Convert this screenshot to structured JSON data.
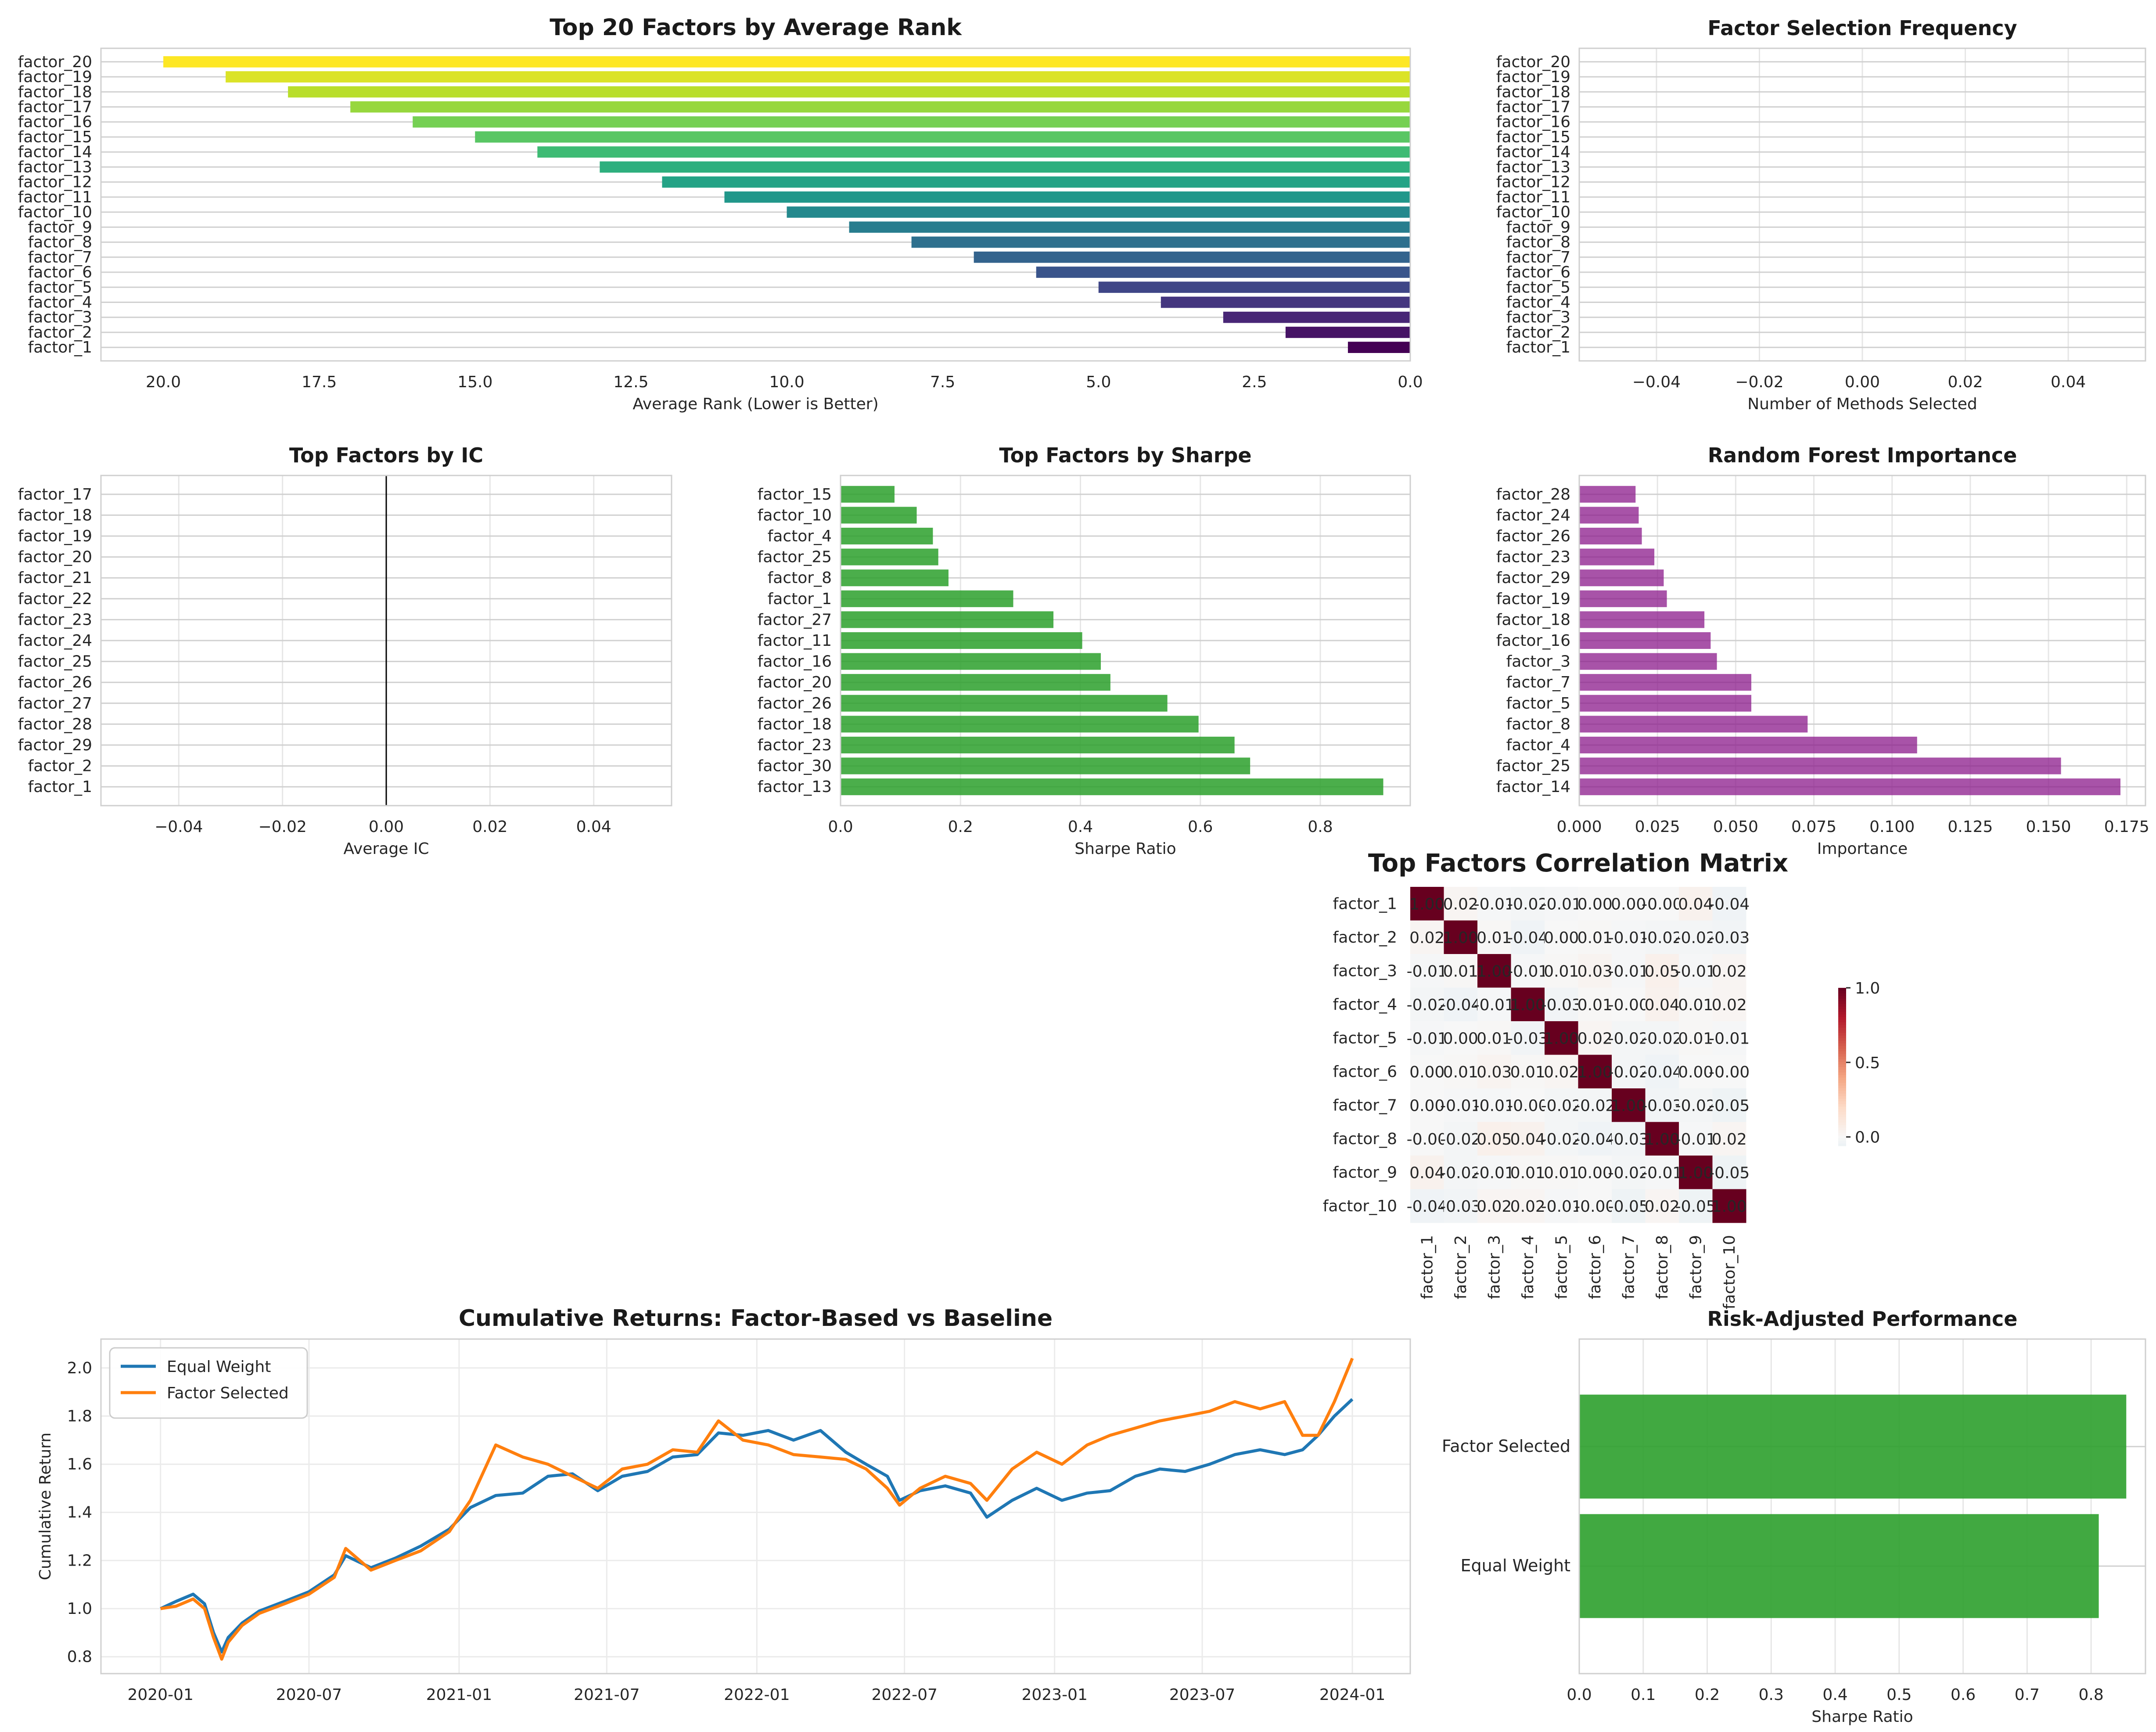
{
  "chart_data": [
    {
      "id": "avg_rank",
      "type": "bar",
      "orientation": "horizontal",
      "title": "Top 20 Factors by Average Rank",
      "xlabel": "Average Rank (Lower is Better)",
      "ylabel": "",
      "xlim": [
        21,
        0
      ],
      "xticks": [
        "20.0",
        "17.5",
        "15.0",
        "12.5",
        "10.0",
        "7.5",
        "5.0",
        "2.5",
        "0.0"
      ],
      "xtick_values": [
        20,
        17.5,
        15,
        12.5,
        10,
        7.5,
        5,
        2.5,
        0
      ],
      "colormap": "viridis",
      "grid": true,
      "categories": [
        "factor_1",
        "factor_2",
        "factor_3",
        "factor_4",
        "factor_5",
        "factor_6",
        "factor_7",
        "factor_8",
        "factor_9",
        "factor_10",
        "factor_11",
        "factor_12",
        "factor_13",
        "factor_14",
        "factor_15",
        "factor_16",
        "factor_17",
        "factor_18",
        "factor_19",
        "factor_20"
      ],
      "values": [
        1,
        2,
        3,
        4,
        5,
        6,
        7,
        8,
        9,
        10,
        11,
        12,
        13,
        14,
        15,
        16,
        17,
        18,
        19,
        20
      ]
    },
    {
      "id": "selection_freq",
      "type": "bar",
      "orientation": "horizontal",
      "title": "Factor Selection Frequency",
      "xlabel": "Number of Methods Selected",
      "ylabel": "",
      "xlim": [
        -0.055,
        0.055
      ],
      "xticks": [
        "−0.04",
        "−0.02",
        "0.00",
        "0.02",
        "0.04"
      ],
      "xtick_values": [
        -0.04,
        -0.02,
        0,
        0.02,
        0.04
      ],
      "grid": true,
      "categories": [
        "factor_1",
        "factor_2",
        "factor_3",
        "factor_4",
        "factor_5",
        "factor_6",
        "factor_7",
        "factor_8",
        "factor_9",
        "factor_10",
        "factor_11",
        "factor_12",
        "factor_13",
        "factor_14",
        "factor_15",
        "factor_16",
        "factor_17",
        "factor_18",
        "factor_19",
        "factor_20"
      ],
      "values": [
        0,
        0,
        0,
        0,
        0,
        0,
        0,
        0,
        0,
        0,
        0,
        0,
        0,
        0,
        0,
        0,
        0,
        0,
        0,
        0
      ]
    },
    {
      "id": "ic",
      "type": "bar",
      "orientation": "horizontal",
      "title": "Top Factors by IC",
      "xlabel": "Average IC",
      "ylabel": "",
      "xlim": [
        -0.055,
        0.055
      ],
      "xticks": [
        "−0.04",
        "−0.02",
        "0.00",
        "0.02",
        "0.04"
      ],
      "xtick_values": [
        -0.04,
        -0.02,
        0,
        0.02,
        0.04
      ],
      "zero_line": true,
      "grid": true,
      "categories": [
        "factor_1",
        "factor_2",
        "factor_29",
        "factor_28",
        "factor_27",
        "factor_26",
        "factor_25",
        "factor_24",
        "factor_23",
        "factor_22",
        "factor_21",
        "factor_20",
        "factor_19",
        "factor_18",
        "factor_17"
      ],
      "values": [
        0,
        0,
        0,
        0,
        0,
        0,
        0,
        0,
        0,
        0,
        0,
        0,
        0,
        0,
        0
      ]
    },
    {
      "id": "sharpe",
      "type": "bar",
      "orientation": "horizontal",
      "title": "Top Factors by Sharpe",
      "xlabel": "Sharpe Ratio",
      "ylabel": "",
      "xlim": [
        0,
        0.95
      ],
      "xticks": [
        "0.0",
        "0.2",
        "0.4",
        "0.6",
        "0.8"
      ],
      "xtick_values": [
        0,
        0.2,
        0.4,
        0.6,
        0.8
      ],
      "color": "#2ca02c",
      "grid": true,
      "categories": [
        "factor_13",
        "factor_30",
        "factor_23",
        "factor_18",
        "factor_26",
        "factor_20",
        "factor_16",
        "factor_11",
        "factor_27",
        "factor_1",
        "factor_8",
        "factor_25",
        "factor_4",
        "factor_10",
        "factor_15"
      ],
      "values": [
        0.905,
        0.683,
        0.657,
        0.597,
        0.545,
        0.45,
        0.434,
        0.403,
        0.355,
        0.288,
        0.18,
        0.163,
        0.154,
        0.127,
        0.09
      ]
    },
    {
      "id": "rf_importance",
      "type": "bar",
      "orientation": "horizontal",
      "title": "Random Forest Importance",
      "xlabel": "Importance",
      "ylabel": "",
      "xlim": [
        0,
        0.181
      ],
      "xticks": [
        "0.000",
        "0.025",
        "0.050",
        "0.075",
        "0.100",
        "0.125",
        "0.150",
        "0.175"
      ],
      "xtick_values": [
        0,
        0.025,
        0.05,
        0.075,
        0.1,
        0.125,
        0.15,
        0.175
      ],
      "color": "#8b1a8b",
      "grid": true,
      "categories": [
        "factor_14",
        "factor_25",
        "factor_4",
        "factor_8",
        "factor_5",
        "factor_7",
        "factor_3",
        "factor_16",
        "factor_18",
        "factor_19",
        "factor_29",
        "factor_23",
        "factor_26",
        "factor_24",
        "factor_28"
      ],
      "values": [
        0.173,
        0.154,
        0.108,
        0.073,
        0.055,
        0.055,
        0.044,
        0.042,
        0.04,
        0.028,
        0.027,
        0.024,
        0.02,
        0.019,
        0.018
      ]
    },
    {
      "id": "corr",
      "type": "heatmap",
      "title": "Top Factors Correlation Matrix",
      "colormap": "RdBu_r",
      "colorbar_ticks": [
        "0.0",
        "0.5",
        "1.0"
      ],
      "colorbar_values": [
        0,
        0.5,
        1
      ],
      "labels": [
        "factor_1",
        "factor_2",
        "factor_3",
        "factor_4",
        "factor_5",
        "factor_6",
        "factor_7",
        "factor_8",
        "factor_9",
        "factor_10"
      ],
      "cell_text": [
        [
          "1.00",
          "0.02",
          "-0.01",
          "-0.02",
          "-0.01",
          "0.00",
          "0.00",
          "-0.00",
          "0.04",
          "-0.04"
        ],
        [
          "0.02",
          "1.00",
          "0.01",
          "-0.04",
          "0.00",
          "0.01",
          "-0.01",
          "-0.02",
          "-0.02",
          "-0.03"
        ],
        [
          "-0.01",
          "0.01",
          "1.00",
          "-0.01",
          "0.01",
          "0.03",
          "-0.01",
          "0.05",
          "-0.01",
          "0.02"
        ],
        [
          "-0.02",
          "-0.04",
          "-0.01",
          "1.00",
          "-0.03",
          "0.01",
          "-0.00",
          "0.04",
          "0.01",
          "0.02"
        ],
        [
          "-0.01",
          "0.00",
          "0.01",
          "-0.03",
          "1.00",
          "0.02",
          "-0.02",
          "-0.02",
          "0.01",
          "-0.01"
        ],
        [
          "0.00",
          "0.01",
          "0.03",
          "0.01",
          "0.02",
          "1.00",
          "-0.02",
          "-0.04",
          "0.00",
          "-0.00"
        ],
        [
          "0.00",
          "-0.01",
          "-0.01",
          "-0.00",
          "-0.02",
          "-0.02",
          "1.00",
          "-0.03",
          "-0.02",
          "-0.05"
        ],
        [
          "-0.00",
          "-0.02",
          "0.05",
          "0.04",
          "-0.02",
          "-0.04",
          "-0.03",
          "1.00",
          "-0.01",
          "0.02"
        ],
        [
          "0.04",
          "-0.02",
          "-0.01",
          "0.01",
          "0.01",
          "0.00",
          "-0.02",
          "-0.01",
          "1.00",
          "-0.05"
        ],
        [
          "-0.04",
          "-0.03",
          "0.02",
          "0.02",
          "-0.01",
          "-0.00",
          "-0.05",
          "0.02",
          "-0.05",
          "1.00"
        ]
      ],
      "matrix": [
        [
          1.0,
          0.02,
          -0.01,
          -0.02,
          -0.01,
          0.0,
          0.0,
          -0.0,
          0.04,
          -0.04
        ],
        [
          0.02,
          1.0,
          0.01,
          -0.04,
          0.0,
          0.01,
          -0.01,
          -0.02,
          -0.02,
          -0.03
        ],
        [
          -0.01,
          0.01,
          1.0,
          -0.01,
          0.01,
          0.03,
          -0.01,
          0.05,
          -0.01,
          0.02
        ],
        [
          -0.02,
          -0.04,
          -0.01,
          1.0,
          -0.03,
          0.01,
          -0.0,
          0.04,
          0.01,
          0.02
        ],
        [
          -0.01,
          0.0,
          0.01,
          -0.03,
          1.0,
          0.02,
          -0.02,
          -0.02,
          0.01,
          -0.01
        ],
        [
          0.0,
          0.01,
          0.03,
          0.01,
          0.02,
          1.0,
          -0.02,
          -0.04,
          0.0,
          -0.0
        ],
        [
          0.0,
          -0.01,
          -0.01,
          -0.0,
          -0.02,
          -0.02,
          1.0,
          -0.03,
          -0.02,
          -0.05
        ],
        [
          -0.0,
          -0.02,
          0.05,
          0.04,
          -0.02,
          -0.04,
          -0.03,
          1.0,
          -0.01,
          0.02
        ],
        [
          0.04,
          -0.02,
          -0.01,
          0.01,
          0.01,
          0.0,
          -0.02,
          -0.01,
          1.0,
          -0.05
        ],
        [
          -0.04,
          -0.03,
          0.02,
          0.02,
          -0.01,
          -0.0,
          -0.05,
          0.02,
          -0.05,
          1.0
        ]
      ]
    },
    {
      "id": "cumret",
      "type": "line",
      "title": "Cumulative Returns: Factor-Based vs Baseline",
      "xlabel": "",
      "ylabel": "Cumulative Return",
      "xlim": [
        "2019-10-20",
        "2024-03-12"
      ],
      "ylim": [
        0.73,
        2.12
      ],
      "xticks": [
        "2020-01",
        "2020-07",
        "2021-01",
        "2021-07",
        "2022-01",
        "2022-07",
        "2023-01",
        "2023-07",
        "2024-01"
      ],
      "xtick_dates": [
        "2020-01-01",
        "2020-07-01",
        "2021-01-01",
        "2021-07-01",
        "2022-01-01",
        "2022-07-01",
        "2023-01-01",
        "2023-07-01",
        "2024-01-01"
      ],
      "yticks": [
        "0.8",
        "1.0",
        "1.2",
        "1.4",
        "1.6",
        "1.8",
        "2.0"
      ],
      "ytick_values": [
        0.8,
        1.0,
        1.2,
        1.4,
        1.6,
        1.8,
        2.0
      ],
      "legend": "upper left",
      "grid": true,
      "series": [
        {
          "name": "Equal Weight",
          "color": "#1f77b4",
          "x": [
            "2020-01-01",
            "2020-01-20",
            "2020-02-10",
            "2020-02-24",
            "2020-03-06",
            "2020-03-16",
            "2020-03-24",
            "2020-04-10",
            "2020-05-01",
            "2020-06-01",
            "2020-07-01",
            "2020-08-01",
            "2020-08-15",
            "2020-09-15",
            "2020-10-15",
            "2020-11-15",
            "2020-12-20",
            "2021-01-15",
            "2021-02-15",
            "2021-03-20",
            "2021-04-20",
            "2021-05-20",
            "2021-06-20",
            "2021-07-20",
            "2021-08-20",
            "2021-09-20",
            "2021-10-20",
            "2021-11-15",
            "2021-12-15",
            "2022-01-15",
            "2022-02-15",
            "2022-03-20",
            "2022-04-20",
            "2022-05-15",
            "2022-06-10",
            "2022-06-25",
            "2022-07-20",
            "2022-08-20",
            "2022-09-20",
            "2022-10-10",
            "2022-11-10",
            "2022-12-10",
            "2023-01-10",
            "2023-02-10",
            "2023-03-10",
            "2023-04-10",
            "2023-05-10",
            "2023-06-10",
            "2023-07-10",
            "2023-08-10",
            "2023-09-10",
            "2023-10-10",
            "2023-11-01",
            "2023-11-20",
            "2023-12-10",
            "2024-01-01"
          ],
          "y": [
            1.0,
            1.03,
            1.06,
            1.02,
            0.9,
            0.82,
            0.88,
            0.94,
            0.99,
            1.03,
            1.07,
            1.14,
            1.22,
            1.17,
            1.21,
            1.26,
            1.33,
            1.42,
            1.47,
            1.48,
            1.55,
            1.56,
            1.49,
            1.55,
            1.57,
            1.63,
            1.64,
            1.73,
            1.72,
            1.74,
            1.7,
            1.74,
            1.65,
            1.6,
            1.55,
            1.45,
            1.49,
            1.51,
            1.48,
            1.38,
            1.45,
            1.5,
            1.45,
            1.48,
            1.49,
            1.55,
            1.58,
            1.57,
            1.6,
            1.64,
            1.66,
            1.64,
            1.66,
            1.72,
            1.8,
            1.87
          ]
        },
        {
          "name": "Factor Selected",
          "color": "#ff7f0e",
          "x": [
            "2020-01-01",
            "2020-01-20",
            "2020-02-10",
            "2020-02-24",
            "2020-03-06",
            "2020-03-16",
            "2020-03-24",
            "2020-04-10",
            "2020-05-01",
            "2020-06-01",
            "2020-07-01",
            "2020-08-01",
            "2020-08-15",
            "2020-09-15",
            "2020-10-15",
            "2020-11-15",
            "2020-12-20",
            "2021-01-15",
            "2021-02-15",
            "2021-03-20",
            "2021-04-20",
            "2021-05-20",
            "2021-06-20",
            "2021-07-20",
            "2021-08-20",
            "2021-09-20",
            "2021-10-20",
            "2021-11-15",
            "2021-12-15",
            "2022-01-15",
            "2022-02-15",
            "2022-03-20",
            "2022-04-20",
            "2022-05-15",
            "2022-06-10",
            "2022-06-25",
            "2022-07-20",
            "2022-08-20",
            "2022-09-20",
            "2022-10-10",
            "2022-11-10",
            "2022-12-10",
            "2023-01-10",
            "2023-02-10",
            "2023-03-10",
            "2023-04-10",
            "2023-05-10",
            "2023-06-10",
            "2023-07-10",
            "2023-08-10",
            "2023-09-10",
            "2023-10-10",
            "2023-11-01",
            "2023-11-20",
            "2023-12-10",
            "2024-01-01"
          ],
          "y": [
            1.0,
            1.01,
            1.04,
            1.0,
            0.88,
            0.79,
            0.86,
            0.93,
            0.98,
            1.02,
            1.06,
            1.13,
            1.25,
            1.16,
            1.2,
            1.24,
            1.32,
            1.45,
            1.68,
            1.63,
            1.6,
            1.55,
            1.5,
            1.58,
            1.6,
            1.66,
            1.65,
            1.78,
            1.7,
            1.68,
            1.64,
            1.63,
            1.62,
            1.58,
            1.5,
            1.43,
            1.5,
            1.55,
            1.52,
            1.45,
            1.58,
            1.65,
            1.6,
            1.68,
            1.72,
            1.75,
            1.78,
            1.8,
            1.82,
            1.86,
            1.83,
            1.86,
            1.72,
            1.72,
            1.86,
            2.04
          ]
        }
      ]
    },
    {
      "id": "risk_adj",
      "type": "bar",
      "orientation": "horizontal",
      "title": "Risk-Adjusted Performance",
      "xlabel": "Sharpe Ratio",
      "ylabel": "",
      "xlim": [
        0,
        0.885
      ],
      "xticks": [
        "0.0",
        "0.1",
        "0.2",
        "0.3",
        "0.4",
        "0.5",
        "0.6",
        "0.7",
        "0.8"
      ],
      "xtick_values": [
        0,
        0.1,
        0.2,
        0.3,
        0.4,
        0.5,
        0.6,
        0.7,
        0.8
      ],
      "color": "#2ca02c",
      "grid": true,
      "categories": [
        "Equal Weight",
        "Factor Selected"
      ],
      "values": [
        0.812,
        0.855
      ]
    }
  ]
}
